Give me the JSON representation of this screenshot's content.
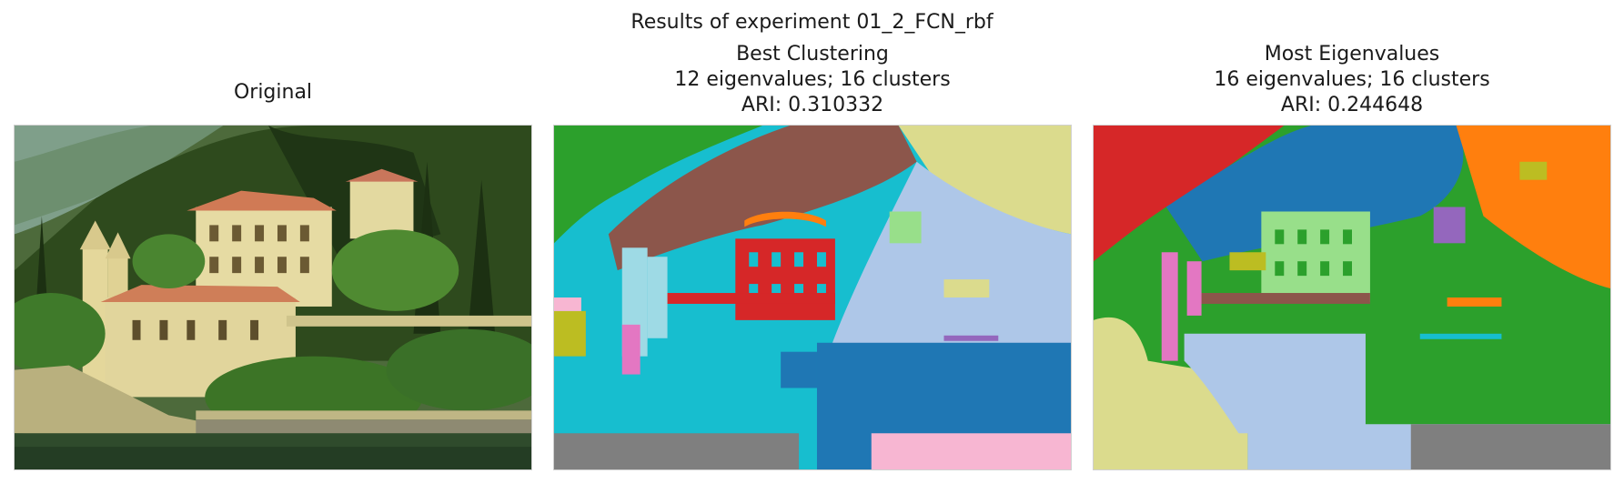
{
  "suptitle": "Results of experiment 01_2_FCN_rbf",
  "panels": [
    {
      "title_lines": [
        "Original"
      ],
      "kind": "photo"
    },
    {
      "title_lines": [
        "Best Clustering",
        "12 eigenvalues; 16 clusters",
        "ARI: 0.310332"
      ],
      "kind": "segmentation",
      "eigenvalues": 12,
      "clusters": 16,
      "ari": 0.310332
    },
    {
      "title_lines": [
        "Most Eigenvalues",
        "16 eigenvalues; 16 clusters",
        "ARI: 0.244648"
      ],
      "kind": "segmentation",
      "eigenvalues": 16,
      "clusters": 16,
      "ari": 0.244648
    }
  ],
  "palette": {
    "blue": "#1f77b4",
    "light_blue": "#aec7e8",
    "orange": "#ff7f0e",
    "green": "#2ca02c",
    "light_green": "#98df8a",
    "red": "#d62728",
    "purple": "#9467bd",
    "brown": "#8c564b",
    "pink": "#e377c2",
    "light_pink": "#f7b6d2",
    "gray": "#7f7f7f",
    "olive": "#bcbd22",
    "khaki": "#dbdb8d",
    "cyan": "#17becf",
    "light_cyan": "#9edae5"
  }
}
